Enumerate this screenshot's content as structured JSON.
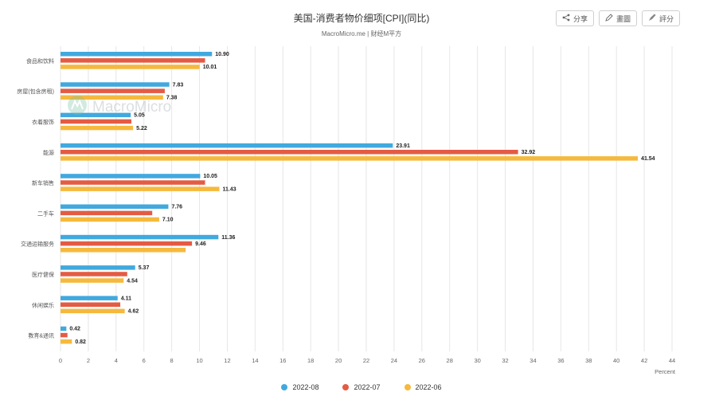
{
  "chart_data": {
    "type": "bar",
    "orientation": "horizontal",
    "title": "美国-消费者物价细项[CPI](同比)",
    "subtitle": "MacroMicro.me | 财经M平方",
    "xlabel": "Percent",
    "xlim": [
      0,
      44
    ],
    "xticks": [
      0,
      2,
      4,
      6,
      8,
      10,
      12,
      14,
      16,
      18,
      20,
      22,
      24,
      26,
      28,
      30,
      32,
      34,
      36,
      38,
      40,
      42,
      44
    ],
    "grid": "vertical",
    "legend_position": "bottom",
    "categories": [
      "食品和饮料",
      "房屋(包含房租)",
      "衣着服饰",
      "能源",
      "新车销售",
      "二手车",
      "交通运输服务",
      "医疗健保",
      "休闲娱乐",
      "教育&通讯"
    ],
    "series": [
      {
        "name": "2022-08",
        "color": "#41a9de",
        "values": [
          10.9,
          7.83,
          5.05,
          23.91,
          10.05,
          7.76,
          11.36,
          5.37,
          4.11,
          0.42
        ]
      },
      {
        "name": "2022-07",
        "color": "#e45b44",
        "values": [
          10.4,
          7.5,
          5.1,
          32.92,
          10.4,
          6.6,
          9.46,
          4.8,
          4.3,
          0.5
        ]
      },
      {
        "name": "2022-06",
        "color": "#f5b93d",
        "values": [
          10.01,
          7.38,
          5.22,
          41.54,
          11.43,
          7.1,
          9.0,
          4.54,
          4.62,
          0.82
        ]
      }
    ],
    "data_labels": [
      [
        "10.90",
        "",
        "10.01"
      ],
      [
        "7.83",
        "",
        "7.38"
      ],
      [
        "5.05",
        "",
        "5.22"
      ],
      [
        "23.91",
        "32.92",
        "41.54"
      ],
      [
        "10.05",
        "",
        "11.43"
      ],
      [
        "7.76",
        "",
        "7.10"
      ],
      [
        "11.36",
        "9.46",
        ""
      ],
      [
        "5.37",
        "",
        "4.54"
      ],
      [
        "4.11",
        "",
        "4.62"
      ],
      [
        "0.42",
        "",
        "0.82"
      ]
    ]
  },
  "toolbar": {
    "share_label": "分享",
    "draw_label": "畫圖",
    "edit_label": "評分",
    "share_icon": "share-icon",
    "draw_icon": "pencil-icon",
    "edit_icon": "pen-icon"
  },
  "watermark": {
    "text": "MacroMicro",
    "icon": "macromicro-logo-icon"
  }
}
